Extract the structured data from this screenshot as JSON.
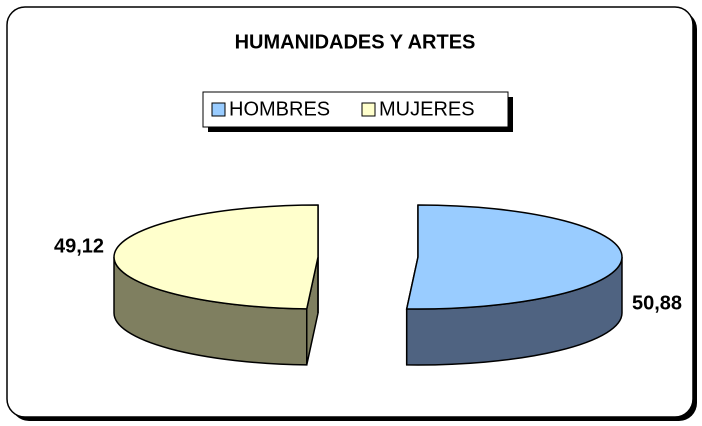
{
  "chart_data": {
    "type": "pie",
    "title": "HUMANIDADES Y ARTES",
    "categories": [
      "HOMBRES",
      "MUJERES"
    ],
    "values": [
      50.88,
      49.12
    ],
    "value_labels": [
      "50,88",
      "49,12"
    ],
    "colors": [
      "#99ccff",
      "#ffffcc"
    ],
    "side_colors": [
      "#4f6381",
      "#7f7f60"
    ],
    "legend": "top",
    "exploded": true
  }
}
